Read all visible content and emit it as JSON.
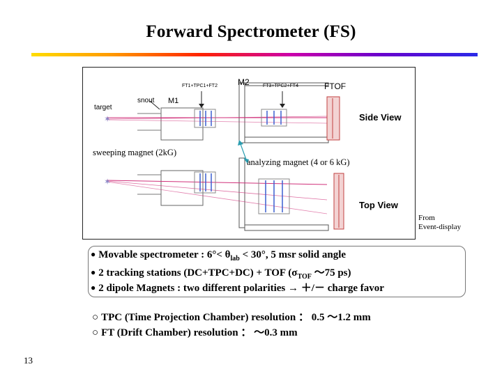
{
  "title": "Forward Spectrometer (FS)",
  "colors": {
    "accent_rule": [
      "#ffdd00",
      "#ff2200",
      "#cc00aa",
      "#2a2ae8"
    ],
    "beam": "#d0307a",
    "arrow": "#2a9db0"
  },
  "diagram": {
    "label_m2": "M2",
    "label_ft1": "FT1+TPC1+FT2",
    "label_ft3": "FT3+TPC2+FT4",
    "label_ftof": "FTOF",
    "label_target": "target",
    "label_snout": "snout",
    "label_m1": "M1",
    "side_view": "Side View",
    "top_view": "Top View"
  },
  "labels": {
    "sweeping": "sweeping magnet (2kG)",
    "analyzing": "analyzing magnet (4 or 6 kG)",
    "source_line1": "From",
    "source_line2": "Event-display"
  },
  "bullets": {
    "b1_pre": "Movable spectrometer :  6°< θ",
    "b1_sub": "lab",
    "b1_post": " < 30°, 5 msr solid angle",
    "b2_pre": "2 tracking stations (DC+TPC+DC) + TOF (σ",
    "b2_sub": "TOF",
    "b2_post": " ～75 ps)",
    "b3": "2 dipole Magnets : two different polarities  →  ＋/－ charge favor"
  },
  "specs": {
    "tpc": "TPC (Time Projection Chamber) resolution ： 0.5 ～1.2 mm",
    "ft": "FT (Drift Chamber) resolution ： ～0.3 mm"
  },
  "page_number": "13"
}
